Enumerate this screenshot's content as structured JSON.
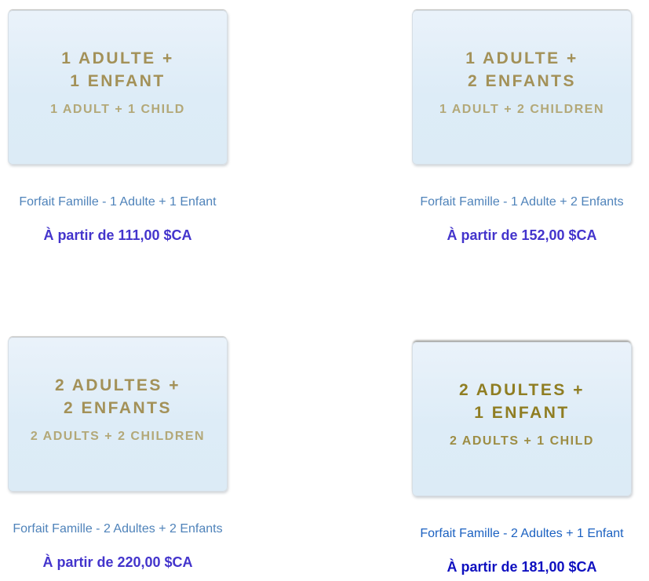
{
  "colors": {
    "page_background": "#ffffff",
    "tile_background": "#ddecf7",
    "tile_border": "#d6dee5",
    "tile_gold_primary": "#a39158",
    "tile_gold_secondary": "#b3a878",
    "tile_gold_primary_active": "#8f7d22",
    "tile_gold_secondary_active": "#9d8d44",
    "title_link": "#4f83ba",
    "title_link_active": "#1b61c1",
    "price_text": "#4334cc",
    "price_text_active": "#0f10c0"
  },
  "cards": [
    {
      "image_line1_fr": "1 ADULTE +",
      "image_line2_fr": "1 ENFANT",
      "image_line_en": "1 ADULT + 1 CHILD",
      "title": "Forfait Famille - 1 Adulte + 1 Enfant",
      "price": "À partir de 111,00 $CA",
      "state": "normal"
    },
    {
      "image_line1_fr": "1 ADULTE +",
      "image_line2_fr": "2 ENFANTS",
      "image_line_en": "1 ADULT + 2 CHILDREN",
      "title": "Forfait Famille - 1 Adulte + 2 Enfants",
      "price": "À partir de 152,00 $CA",
      "state": "normal"
    },
    {
      "image_line1_fr": "2 ADULTES +",
      "image_line2_fr": "2 ENFANTS",
      "image_line_en": "2 ADULTS + 2 CHILDREN",
      "title": "Forfait Famille - 2 Adultes + 2 Enfants",
      "price": "À partir de 220,00 $CA",
      "state": "normal"
    },
    {
      "image_line1_fr": "2 ADULTES +",
      "image_line2_fr": "1 ENFANT",
      "image_line_en": "2 ADULTS + 1 CHILD",
      "title": "Forfait Famille - 2 Adultes + 1 Enfant",
      "price": "À partir de 181,00 $CA",
      "state": "hover"
    }
  ]
}
